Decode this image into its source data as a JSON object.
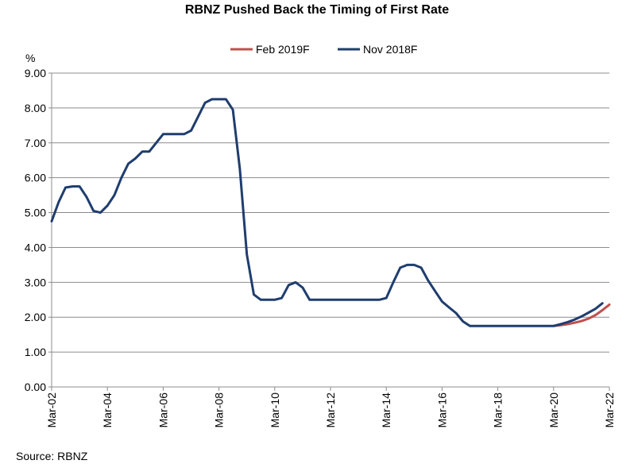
{
  "chart_data": {
    "type": "line",
    "title": "RBNZ Pushed Back the Timing of First Rate",
    "ylabel": "%",
    "xlabel": "",
    "source": "Source: RBNZ",
    "ylim": [
      0,
      9
    ],
    "yticks": [
      "0.00",
      "1.00",
      "2.00",
      "3.00",
      "4.00",
      "5.00",
      "6.00",
      "7.00",
      "8.00",
      "9.00"
    ],
    "xlim": [
      2002.0,
      2022.0
    ],
    "xticks": [
      {
        "label": "Mar-02",
        "x": 2002.0
      },
      {
        "label": "Mar-04",
        "x": 2004.0
      },
      {
        "label": "Mar-06",
        "x": 2006.0
      },
      {
        "label": "Mar-08",
        "x": 2008.0
      },
      {
        "label": "Mar-10",
        "x": 2010.0
      },
      {
        "label": "Mar-12",
        "x": 2012.0
      },
      {
        "label": "Mar-14",
        "x": 2014.0
      },
      {
        "label": "Mar-16",
        "x": 2016.0
      },
      {
        "label": "Mar-18",
        "x": 2018.0
      },
      {
        "label": "Mar-20",
        "x": 2020.0
      },
      {
        "label": "Mar-22",
        "x": 2022.0
      }
    ],
    "grid": true,
    "legend_position": "top",
    "series": [
      {
        "name": "Feb 2019F",
        "color": "#c0504d",
        "points": [
          [
            2020.0,
            1.75
          ],
          [
            2020.25,
            1.77
          ],
          [
            2020.5,
            1.8
          ],
          [
            2020.75,
            1.84
          ],
          [
            2021.0,
            1.89
          ],
          [
            2021.25,
            1.96
          ],
          [
            2021.5,
            2.06
          ],
          [
            2021.75,
            2.2
          ],
          [
            2022.0,
            2.36
          ]
        ]
      },
      {
        "name": "Nov 2018F",
        "color": "#1f3d6e",
        "points": [
          [
            2002.0,
            4.75
          ],
          [
            2002.25,
            5.3
          ],
          [
            2002.5,
            5.72
          ],
          [
            2002.75,
            5.75
          ],
          [
            2003.0,
            5.75
          ],
          [
            2003.25,
            5.45
          ],
          [
            2003.5,
            5.05
          ],
          [
            2003.75,
            5.0
          ],
          [
            2004.0,
            5.2
          ],
          [
            2004.25,
            5.5
          ],
          [
            2004.5,
            6.0
          ],
          [
            2004.75,
            6.4
          ],
          [
            2005.0,
            6.55
          ],
          [
            2005.25,
            6.75
          ],
          [
            2005.5,
            6.75
          ],
          [
            2005.75,
            7.0
          ],
          [
            2006.0,
            7.25
          ],
          [
            2006.25,
            7.25
          ],
          [
            2006.5,
            7.25
          ],
          [
            2006.75,
            7.25
          ],
          [
            2007.0,
            7.35
          ],
          [
            2007.25,
            7.75
          ],
          [
            2007.5,
            8.15
          ],
          [
            2007.75,
            8.25
          ],
          [
            2008.0,
            8.25
          ],
          [
            2008.25,
            8.25
          ],
          [
            2008.5,
            7.95
          ],
          [
            2008.75,
            6.25
          ],
          [
            2009.0,
            3.8
          ],
          [
            2009.25,
            2.65
          ],
          [
            2009.5,
            2.5
          ],
          [
            2009.75,
            2.5
          ],
          [
            2010.0,
            2.5
          ],
          [
            2010.25,
            2.55
          ],
          [
            2010.5,
            2.92
          ],
          [
            2010.75,
            3.0
          ],
          [
            2011.0,
            2.85
          ],
          [
            2011.25,
            2.5
          ],
          [
            2011.5,
            2.5
          ],
          [
            2012.0,
            2.5
          ],
          [
            2013.0,
            2.5
          ],
          [
            2013.75,
            2.5
          ],
          [
            2014.0,
            2.55
          ],
          [
            2014.25,
            3.0
          ],
          [
            2014.5,
            3.42
          ],
          [
            2014.75,
            3.5
          ],
          [
            2015.0,
            3.5
          ],
          [
            2015.25,
            3.42
          ],
          [
            2015.5,
            3.05
          ],
          [
            2015.75,
            2.75
          ],
          [
            2016.0,
            2.45
          ],
          [
            2016.25,
            2.28
          ],
          [
            2016.5,
            2.12
          ],
          [
            2016.75,
            1.88
          ],
          [
            2017.0,
            1.75
          ],
          [
            2018.0,
            1.75
          ],
          [
            2019.0,
            1.75
          ],
          [
            2020.0,
            1.75
          ],
          [
            2020.25,
            1.8
          ],
          [
            2020.5,
            1.86
          ],
          [
            2020.75,
            1.93
          ],
          [
            2021.0,
            2.02
          ],
          [
            2021.25,
            2.13
          ],
          [
            2021.5,
            2.24
          ],
          [
            2021.75,
            2.4
          ]
        ]
      }
    ]
  }
}
